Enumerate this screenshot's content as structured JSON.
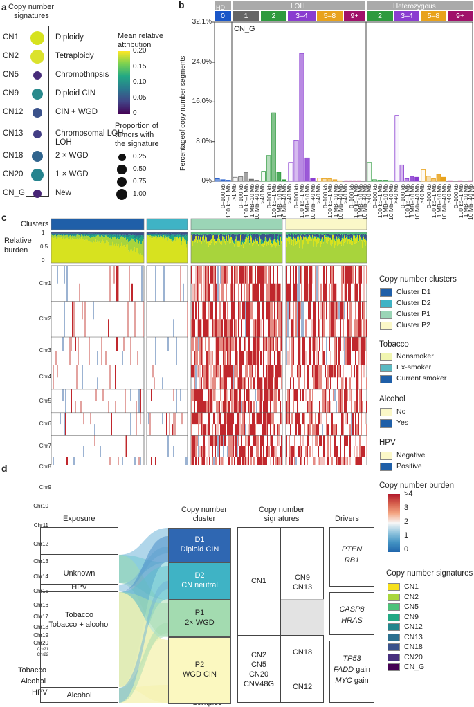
{
  "panels": {
    "a": "a",
    "b": "b",
    "c": "c",
    "d": "d"
  },
  "panel_a": {
    "title_line1": "Copy number",
    "title_line2": "signatures",
    "rows": [
      {
        "id": "CN1",
        "desc": "Diploidy",
        "attr": 0.2,
        "prop": 0.55,
        "color": "#d6e21f"
      },
      {
        "id": "CN2",
        "desc": "Tetraploidy",
        "attr": 0.2,
        "prop": 0.55,
        "color": "#dbe22c"
      },
      {
        "id": "CN5",
        "desc": "Chromothripsis",
        "attr": 0.03,
        "prop": 0.1,
        "color": "#472c7a"
      },
      {
        "id": "CN9",
        "desc": "Diploid CIN",
        "attr": 0.1,
        "prop": 0.3,
        "color": "#2a8a8c"
      },
      {
        "id": "CN12",
        "desc": "CIN + WGD",
        "attr": 0.06,
        "prop": 0.2,
        "color": "#3b528b"
      },
      {
        "id": "CN13",
        "desc": "Chromosomal LOH",
        "attr": 0.05,
        "prop": 0.12,
        "color": "#433e85"
      },
      {
        "id": "CN18",
        "desc": "2 × WGD",
        "attr": 0.07,
        "prop": 0.25,
        "color": "#31658e"
      },
      {
        "id": "CN20",
        "desc": "1 × WGD",
        "attr": 0.11,
        "prop": 0.35,
        "color": "#26848e"
      },
      {
        "id": "CN_G",
        "desc": "New",
        "attr": 0.02,
        "prop": 0.08,
        "color": "#482576"
      }
    ],
    "row_desc_extra": {
      "CN13": "LOH"
    },
    "colorbar_title1": "Mean relative",
    "colorbar_title2": "attribution",
    "colorbar_ticks": [
      "0.20",
      "0.15",
      "0.10",
      "0.05",
      "0"
    ],
    "size_title1": "Proportion of",
    "size_title2": "tumors with",
    "size_title3": "the signature",
    "size_ticks": [
      "0.25",
      "0.50",
      "0.75",
      "1.00"
    ]
  },
  "panel_b": {
    "header_hd": "HD",
    "header_loh": "LOH",
    "header_het": "Heterozygous",
    "groups": [
      {
        "label": "0",
        "color": "#1a56c8",
        "section": "HD"
      },
      {
        "label": "1",
        "color": "#666666",
        "section": "LOH"
      },
      {
        "label": "2",
        "color": "#2e9a3e",
        "section": "LOH"
      },
      {
        "label": "3–4",
        "color": "#8a3cd0",
        "section": "LOH"
      },
      {
        "label": "5–8",
        "color": "#e8a21c",
        "section": "LOH"
      },
      {
        "label": "9+",
        "color": "#a0106a",
        "section": "LOH"
      },
      {
        "label": "2",
        "color": "#2e9a3e",
        "section": "Het"
      },
      {
        "label": "3–4",
        "color": "#8a3cd0",
        "section": "Het"
      },
      {
        "label": "5–8",
        "color": "#e8a21c",
        "section": "Het"
      },
      {
        "label": "9+",
        "color": "#a0106a",
        "section": "Het"
      }
    ],
    "ylabel": "Percentageof copy number segments",
    "yticks": [
      "32.1%",
      "24.0%",
      "16.0%",
      "8.0%",
      "0%"
    ],
    "inset_label": "CN_G"
  },
  "chart_data": {
    "type": "bar",
    "title": "CN_G",
    "ylabel": "Percentageof copy number segments",
    "ylim": [
      0,
      32.1
    ],
    "series": [
      {
        "group": "0",
        "categories": [
          "0–100 kb",
          "100 kb–1 Mb",
          ">1 Mb"
        ],
        "values": [
          0.5,
          0.3,
          0.2
        ]
      },
      {
        "group": "1",
        "categories": [
          "0–100 kb",
          "100 kb–1 Mb",
          "1 MB–10 Mb",
          "10 Mb–40 Mb",
          ">40 Mb"
        ],
        "values": [
          0.8,
          0.9,
          1.8,
          0.4,
          0.2
        ]
      },
      {
        "group": "2",
        "categories": [
          "0–100 kb",
          "100 kb–1 Mb",
          "1 MB–10 Mb",
          "10 Mb–40 Mb",
          ">40 Mb"
        ],
        "values": [
          2.0,
          5.2,
          13.8,
          1.8,
          0.3
        ]
      },
      {
        "group": "3–4",
        "categories": [
          "0–100 kb",
          "100 kb–1 Mb",
          "1 MB–10 Mb",
          "10 Mb–40 Mb",
          ">40 Mb"
        ],
        "values": [
          3.8,
          8.2,
          25.8,
          4.7,
          0.5
        ]
      },
      {
        "group": "5–8",
        "categories": [
          "0–100 kb",
          "100 kb–1 Mb",
          "1 MB–10 Mb",
          "10 Mb–40 Mb",
          ">40 Mb"
        ],
        "values": [
          0.6,
          0.5,
          0.5,
          0.3,
          0.1
        ]
      },
      {
        "group": "9+",
        "categories": [
          "0–100 kb",
          "100 kb–1 Mb",
          "1 MB–10 Mb",
          "10 Mb–40 Mb",
          ">40 Mb"
        ],
        "values": [
          0.1,
          0.1,
          0.1,
          0.1,
          0.0
        ]
      },
      {
        "group": "Het 2",
        "categories": [
          "0–100 kb",
          "100 kb–1 Mb",
          "1 MB–10 Mb",
          "10 Mb–40 Mb",
          ">40 Mb"
        ],
        "values": [
          3.8,
          0.3,
          0.2,
          0.2,
          0.1
        ]
      },
      {
        "group": "Het 3–4",
        "categories": [
          "0–100 kb",
          "100 kb–1 Mb",
          "1 MB–10 Mb",
          "10 Mb–40 Mb",
          ">40 Mb"
        ],
        "values": [
          13.3,
          3.3,
          0.5,
          1.0,
          0.8
        ]
      },
      {
        "group": "Het 5–8",
        "categories": [
          "0–100 kb",
          "100 kb–1 Mb",
          "1 MB–10 Mb",
          "10 Mb–40 Mb",
          ">40 Mb"
        ],
        "values": [
          2.3,
          1.0,
          0.5,
          1.4,
          0.8
        ]
      },
      {
        "group": "Het 9+",
        "categories": [
          "0–100 kb",
          "100 kb–1 Mb",
          "1 MB–10 Mb",
          "10 Mb–40 Mb",
          ">40 Mb"
        ],
        "values": [
          0.1,
          0.0,
          0.1,
          0.0,
          0.1
        ]
      }
    ]
  },
  "panel_c": {
    "row_clusters": "Clusters",
    "row_burden1": "Relative",
    "row_burden2": "burden",
    "burden_ticks": [
      "1",
      "0.5",
      "0"
    ],
    "chromosomes": [
      "Chr1",
      "Chr2",
      "Chr3",
      "Chr4",
      "Chr5",
      "Chr6",
      "Chr7",
      "Chr8",
      "Chr9",
      "Chr10",
      "Chr11",
      "Chr12",
      "Chr13",
      "Chr14",
      "Chr15",
      "Chr16",
      "Chr17",
      "Chr18",
      "Chr19",
      "Chr20",
      "Chr21",
      "Chr22"
    ],
    "row_tobacco": "Tobacco",
    "row_alcohol": "Alcohol",
    "row_hpv": "HPV",
    "xlabel": "Samples",
    "clusters": [
      {
        "name": "Cluster D1",
        "color": "#1f5fa8"
      },
      {
        "name": "Cluster D2",
        "color": "#3fb3c5"
      },
      {
        "name": "Cluster P1",
        "color": "#9bd5b6"
      },
      {
        "name": "Cluster P2",
        "color": "#fbf8c8"
      }
    ],
    "legend_clusters_title": "Copy number clusters",
    "legend_tobacco_title": "Tobacco",
    "legend_tobacco": [
      {
        "name": "Nonsmoker",
        "color": "#f0f5b0"
      },
      {
        "name": "Ex-smoker",
        "color": "#5ab9c1"
      },
      {
        "name": "Current smoker",
        "color": "#1f5fa8"
      }
    ],
    "legend_alcohol_title": "Alcohol",
    "legend_alcohol": [
      {
        "name": "No",
        "color": "#fbf8c8"
      },
      {
        "name": "Yes",
        "color": "#1f5fa8"
      }
    ],
    "legend_hpv_title": "HPV",
    "legend_hpv": [
      {
        "name": "Negative",
        "color": "#fbf8c8"
      },
      {
        "name": "Positive",
        "color": "#1f5fa8"
      }
    ],
    "legend_burden_title": "Copy number burden",
    "burden_scale_ticks": [
      ">4",
      "3",
      "2",
      "1",
      "0"
    ]
  },
  "panel_d": {
    "col_exposure": "Exposure",
    "col_cluster1": "Copy number",
    "col_cluster2": "cluster",
    "col_signatures1": "Copy number",
    "col_signatures2": "signatures",
    "col_drivers": "Drivers",
    "exposures": [
      "Unknown",
      "HPV",
      "Tobacco",
      "Tobacco + alcohol",
      "Alcohol"
    ],
    "clusters": [
      {
        "code": "D1",
        "desc": "Diploid CIN",
        "color": "#2f67b2"
      },
      {
        "code": "D2",
        "desc": "CN neutral",
        "color": "#3fb3c5"
      },
      {
        "code": "P1",
        "desc": "2× WGD",
        "color": "#a3dbb0"
      },
      {
        "code": "P2",
        "desc": "WGD CIN",
        "color": "#fbf8c0"
      }
    ],
    "sig_left_top": "CN1",
    "sig_left_bottom": [
      "CN2",
      "CN5",
      "CN20",
      "CNV48G"
    ],
    "sig_right": [
      [
        "CN9",
        "CN13"
      ],
      [
        "CN18"
      ],
      [
        "CN12"
      ]
    ],
    "drivers": [
      [
        "PTEN",
        "RB1"
      ],
      [
        "CASP8",
        "HRAS"
      ],
      [
        "TP53",
        "FADD gain",
        "MYC gain"
      ]
    ],
    "legend_title": "Copy number signatures",
    "legend": [
      {
        "name": "CN1",
        "color": "#f6e01b"
      },
      {
        "name": "CN2",
        "color": "#a9d63c"
      },
      {
        "name": "CN5",
        "color": "#4cc27a"
      },
      {
        "name": "CN9",
        "color": "#22a884"
      },
      {
        "name": "CN12",
        "color": "#23868d"
      },
      {
        "name": "CN13",
        "color": "#2c6f8e"
      },
      {
        "name": "CN18",
        "color": "#3b528b"
      },
      {
        "name": "CN20",
        "color": "#472f7d"
      },
      {
        "name": "CN_G",
        "color": "#440154"
      }
    ]
  }
}
